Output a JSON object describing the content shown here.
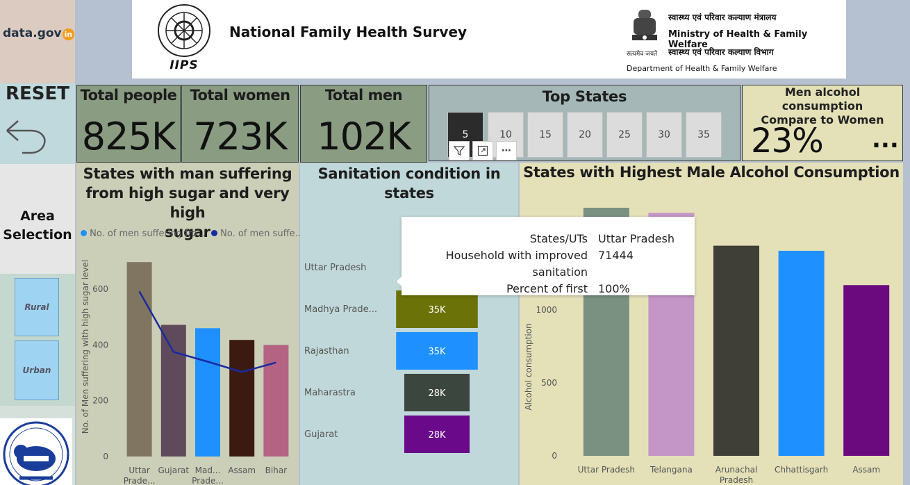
{
  "header": {
    "datagov_logo": "data.gov",
    "datagov_logo_suffix": "in",
    "title": "National Family Health Survey",
    "ministry_hindi": "स्वास्थ्य एवं परिवार कल्याण मंत्रालय",
    "ministry": "Ministry of Health & Family Welfare",
    "dept_hindi": "स्वास्थ्य एवं परिवार कल्याण विभाग",
    "dept": "Department of Health & Family Welfare",
    "iips_label": "IIPS",
    "emblem_caption": "सत्यमेव जयते"
  },
  "reset": {
    "label": "RESET"
  },
  "area": {
    "title_line1": "Area",
    "title_line2": "Selection",
    "options": [
      "Rural",
      "Urban"
    ]
  },
  "kpis": {
    "people": {
      "label": "Total people",
      "value": "825K"
    },
    "women": {
      "label": "Total women",
      "value": "723K"
    },
    "men": {
      "label": "Total men",
      "value": "102K"
    }
  },
  "top_states": {
    "title": "Top States",
    "options": [
      "5",
      "10",
      "15",
      "20",
      "25",
      "30",
      "35"
    ],
    "selected": "5"
  },
  "alcohol_kpi": {
    "title_line1": "Men alcohol consumption",
    "title_line2": "Compare to Women",
    "value": "23%",
    "more": "..."
  },
  "sugar_chart": {
    "title_line1": "States with man suffering",
    "title_line2": "from high sugar and very high",
    "title_line3": "sugar",
    "legend": [
      "No. of men suffering fro...",
      "No. of men suffe..."
    ],
    "ylabel": "No. of Men suffering with high sugar level",
    "yticks": [
      "0",
      "200",
      "400",
      "600"
    ]
  },
  "sanitation_chart": {
    "title_line1": "Sanitation condition in",
    "title_line2": "states"
  },
  "alcohol_chart": {
    "title": "States with Highest Male Alcohol Consumption",
    "ylabel": "Alcohol consumption",
    "yticks": [
      "0",
      "500",
      "1000"
    ]
  },
  "tooltip": {
    "rows": [
      {
        "key": "States/UTs",
        "value": "Uttar Pradesh"
      },
      {
        "key": "Household with improved sanitation",
        "value": "71444"
      },
      {
        "key": "Percent of first",
        "value": "100%"
      }
    ]
  },
  "chart_data": [
    {
      "type": "bar",
      "title": "States with man suffering from high sugar and very high sugar",
      "categories": [
        "Uttar Prade...",
        "Gujarat",
        "Mad... Prade...",
        "Assam",
        "Bihar"
      ],
      "series": [
        {
          "name": "No. of men suffering fro...",
          "type": "bar",
          "values": [
            697,
            472,
            460,
            418,
            400
          ]
        },
        {
          "name": "No. of men suffe...",
          "type": "line",
          "values": [
            592,
            375,
            340,
            303,
            337
          ]
        }
      ],
      "ylabel": "No. of Men suffering with high sugar level",
      "ylim": [
        0,
        700
      ],
      "colors": [
        "#7f7560",
        "#5e4a5a",
        "#1e90ff",
        "#3b1a12",
        "#b46482"
      ],
      "line_color": "#1a2aa0"
    },
    {
      "type": "bar",
      "orientation": "horizontal-funnel",
      "title": "Sanitation condition in states",
      "categories": [
        "Uttar Pradesh",
        "Madhya Prade...",
        "Rajasthan",
        "Maharastra",
        "Gujarat"
      ],
      "values": [
        71444,
        35000,
        35000,
        28000,
        28000
      ],
      "labels": [
        "",
        "35K",
        "35K",
        "28K",
        "28K"
      ],
      "colors": [
        "#6c6458",
        "#6b7208",
        "#1e90ff",
        "#3b463e",
        "#6a0a8a"
      ]
    },
    {
      "type": "bar",
      "title": "States with Highest Male Alcohol Consumption",
      "categories": [
        "Uttar Pradesh",
        "Telangana",
        "Arunachal Pradesh",
        "Chhattisgarh",
        "Assam"
      ],
      "values": [
        1700,
        1665,
        1440,
        1405,
        1170
      ],
      "ylabel": "Alcohol consumption",
      "ylim": [
        0,
        1800
      ],
      "colors": [
        "#7a9080",
        "#c496c8",
        "#3f3f38",
        "#1e90ff",
        "#6a0a7e"
      ]
    }
  ]
}
